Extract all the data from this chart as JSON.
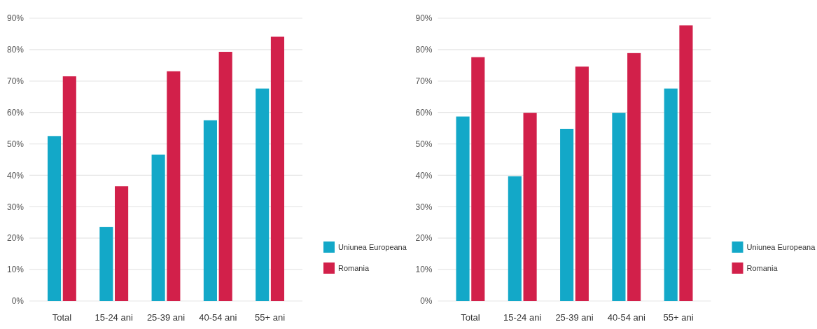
{
  "chart_data": [
    {
      "type": "bar",
      "categories": [
        "Total",
        "15-24 ani",
        "25-39 ani",
        "40-54 ani",
        "55+ ani"
      ],
      "series": [
        {
          "name": "Uniunea Europeana",
          "color": "#13a8c8",
          "values": [
            52.5,
            23.6,
            46.6,
            57.5,
            67.6
          ]
        },
        {
          "name": "Romania",
          "color": "#d2204a",
          "values": [
            71.5,
            36.5,
            73.1,
            79.3,
            84.1
          ]
        }
      ],
      "ylim": [
        0,
        90
      ],
      "yticks": [
        {
          "value": 0,
          "label": "0%"
        },
        {
          "value": 10,
          "label": "10%"
        },
        {
          "value": 20,
          "label": "20%"
        },
        {
          "value": 30,
          "label": "30%"
        },
        {
          "value": 40,
          "label": "40%"
        },
        {
          "value": 50,
          "label": "50%"
        },
        {
          "value": 60,
          "label": "60%"
        },
        {
          "value": 70,
          "label": "70%"
        },
        {
          "value": 80,
          "label": "80%"
        },
        {
          "value": 90,
          "label": "90%"
        }
      ],
      "grid": "y",
      "legend": "bottom right"
    },
    {
      "type": "bar",
      "categories": [
        "Total",
        "15-24 ani",
        "25-39 ani",
        "40-54 ani",
        "55+ ani"
      ],
      "series": [
        {
          "name": "Uniunea Europeana",
          "color": "#13a8c8",
          "values": [
            58.7,
            39.7,
            54.8,
            59.9,
            67.6
          ]
        },
        {
          "name": "Romania",
          "color": "#d2204a",
          "values": [
            77.6,
            59.9,
            74.6,
            78.9,
            87.7
          ]
        }
      ],
      "ylim": [
        0,
        90
      ],
      "yticks": [
        {
          "value": 0,
          "label": "0%"
        },
        {
          "value": 10,
          "label": "10%"
        },
        {
          "value": 20,
          "label": "20%"
        },
        {
          "value": 30,
          "label": "30%"
        },
        {
          "value": 40,
          "label": "40%"
        },
        {
          "value": 50,
          "label": "50%"
        },
        {
          "value": 60,
          "label": "60%"
        },
        {
          "value": 70,
          "label": "70%"
        },
        {
          "value": 80,
          "label": "80%"
        },
        {
          "value": 90,
          "label": "90%"
        }
      ],
      "grid": "y",
      "legend": "bottom right"
    }
  ]
}
